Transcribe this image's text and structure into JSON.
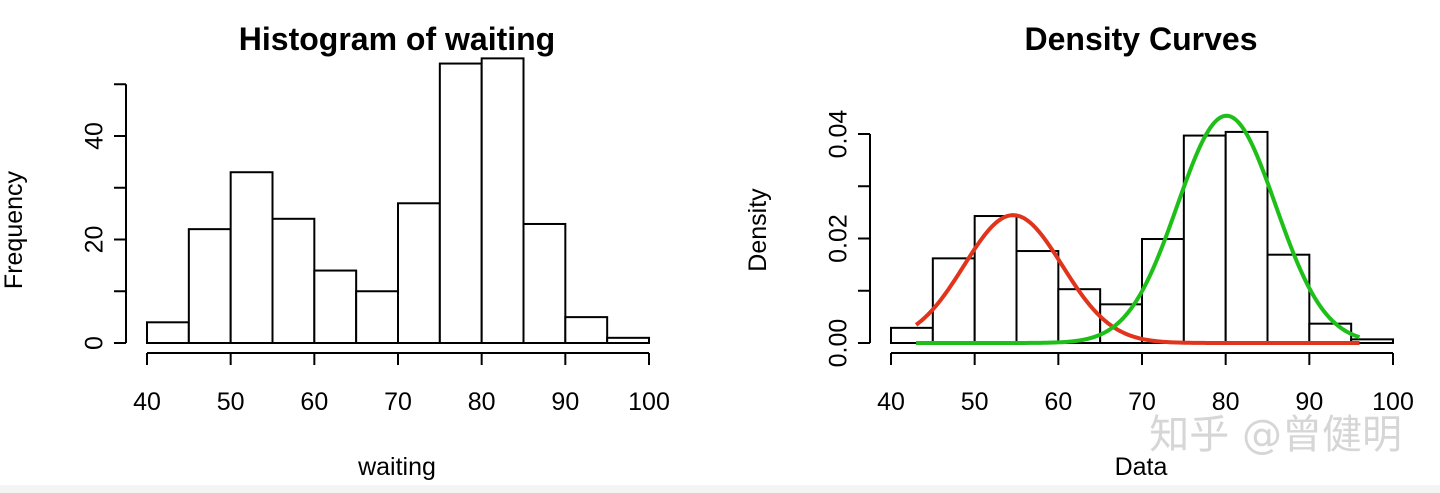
{
  "chart_data": [
    {
      "type": "bar",
      "title": "Histogram of waiting",
      "xlabel": "waiting",
      "ylabel": "Frequency",
      "xlim": [
        40,
        100
      ],
      "ylim": [
        0,
        55
      ],
      "bins": [
        [
          40,
          45
        ],
        [
          45,
          50
        ],
        [
          50,
          55
        ],
        [
          55,
          60
        ],
        [
          60,
          65
        ],
        [
          65,
          70
        ],
        [
          70,
          75
        ],
        [
          75,
          80
        ],
        [
          80,
          85
        ],
        [
          85,
          90
        ],
        [
          90,
          95
        ],
        [
          95,
          100
        ]
      ],
      "values": [
        4,
        22,
        33,
        24,
        14,
        10,
        27,
        54,
        55,
        23,
        5,
        1
      ],
      "x_ticks": [
        "40",
        "50",
        "60",
        "70",
        "80",
        "90",
        "100"
      ],
      "y_ticks": [
        "0",
        "20",
        "40"
      ],
      "y_tick_values": [
        0,
        20,
        40
      ],
      "y_minor_ticks": [
        10,
        30,
        50
      ]
    },
    {
      "type": "bar",
      "title": "Density Curves",
      "xlabel": "Data",
      "ylabel": "Density",
      "xlim": [
        40,
        100
      ],
      "ylim": [
        0,
        0.045
      ],
      "bins": [
        [
          40,
          45
        ],
        [
          45,
          50
        ],
        [
          50,
          55
        ],
        [
          55,
          60
        ],
        [
          60,
          65
        ],
        [
          65,
          70
        ],
        [
          70,
          75
        ],
        [
          75,
          80
        ],
        [
          80,
          85
        ],
        [
          85,
          90
        ],
        [
          90,
          95
        ],
        [
          95,
          100
        ]
      ],
      "values": [
        0.0029,
        0.0162,
        0.0243,
        0.0176,
        0.0103,
        0.0074,
        0.0199,
        0.0397,
        0.0404,
        0.0169,
        0.0037,
        0.0007
      ],
      "x_ticks": [
        "40",
        "50",
        "60",
        "70",
        "80",
        "90",
        "100"
      ],
      "y_ticks": [
        "0.00",
        "0.02",
        "0.04"
      ],
      "y_tick_values": [
        0,
        0.02,
        0.04
      ],
      "y_minor_ticks": [
        0.01,
        0.03
      ],
      "curves": [
        {
          "color": "#e0341c",
          "mean": 54.6,
          "sd": 5.87,
          "weight": 0.36,
          "x_range": [
            43,
            96
          ]
        },
        {
          "color": "#1fbf1a",
          "mean": 80.1,
          "sd": 5.87,
          "weight": 0.64,
          "x_range": [
            43,
            96
          ]
        }
      ]
    }
  ],
  "watermark": "知乎 @曾健明"
}
